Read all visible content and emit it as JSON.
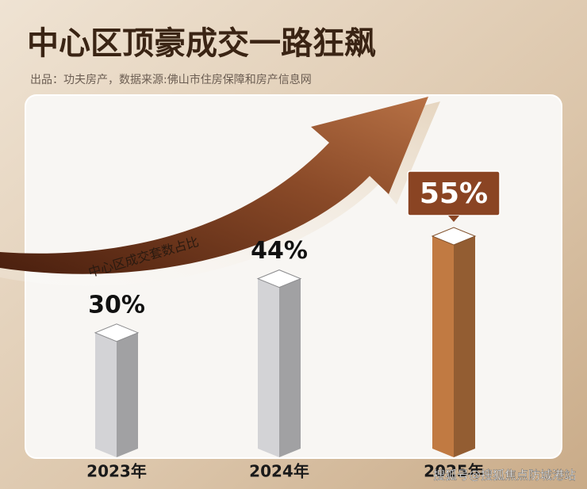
{
  "chart_data": {
    "type": "bar",
    "title": "中心区顶豪成交一路狂飙",
    "subtitle": "出品：功夫房产，数据来源:佛山市住房保障和房产信息网",
    "categories": [
      "2023年",
      "2024年",
      "2025年"
    ],
    "series": [
      {
        "name": "中心区成交套数占比",
        "values": [
          30,
          44,
          55
        ],
        "value_labels": [
          "30%",
          "44%",
          "55%"
        ],
        "colors": [
          "#c9c9cc",
          "#c9c9cc",
          "#b8743f"
        ]
      }
    ],
    "watermark": "搜狐号@搜狐焦点防城港站"
  }
}
